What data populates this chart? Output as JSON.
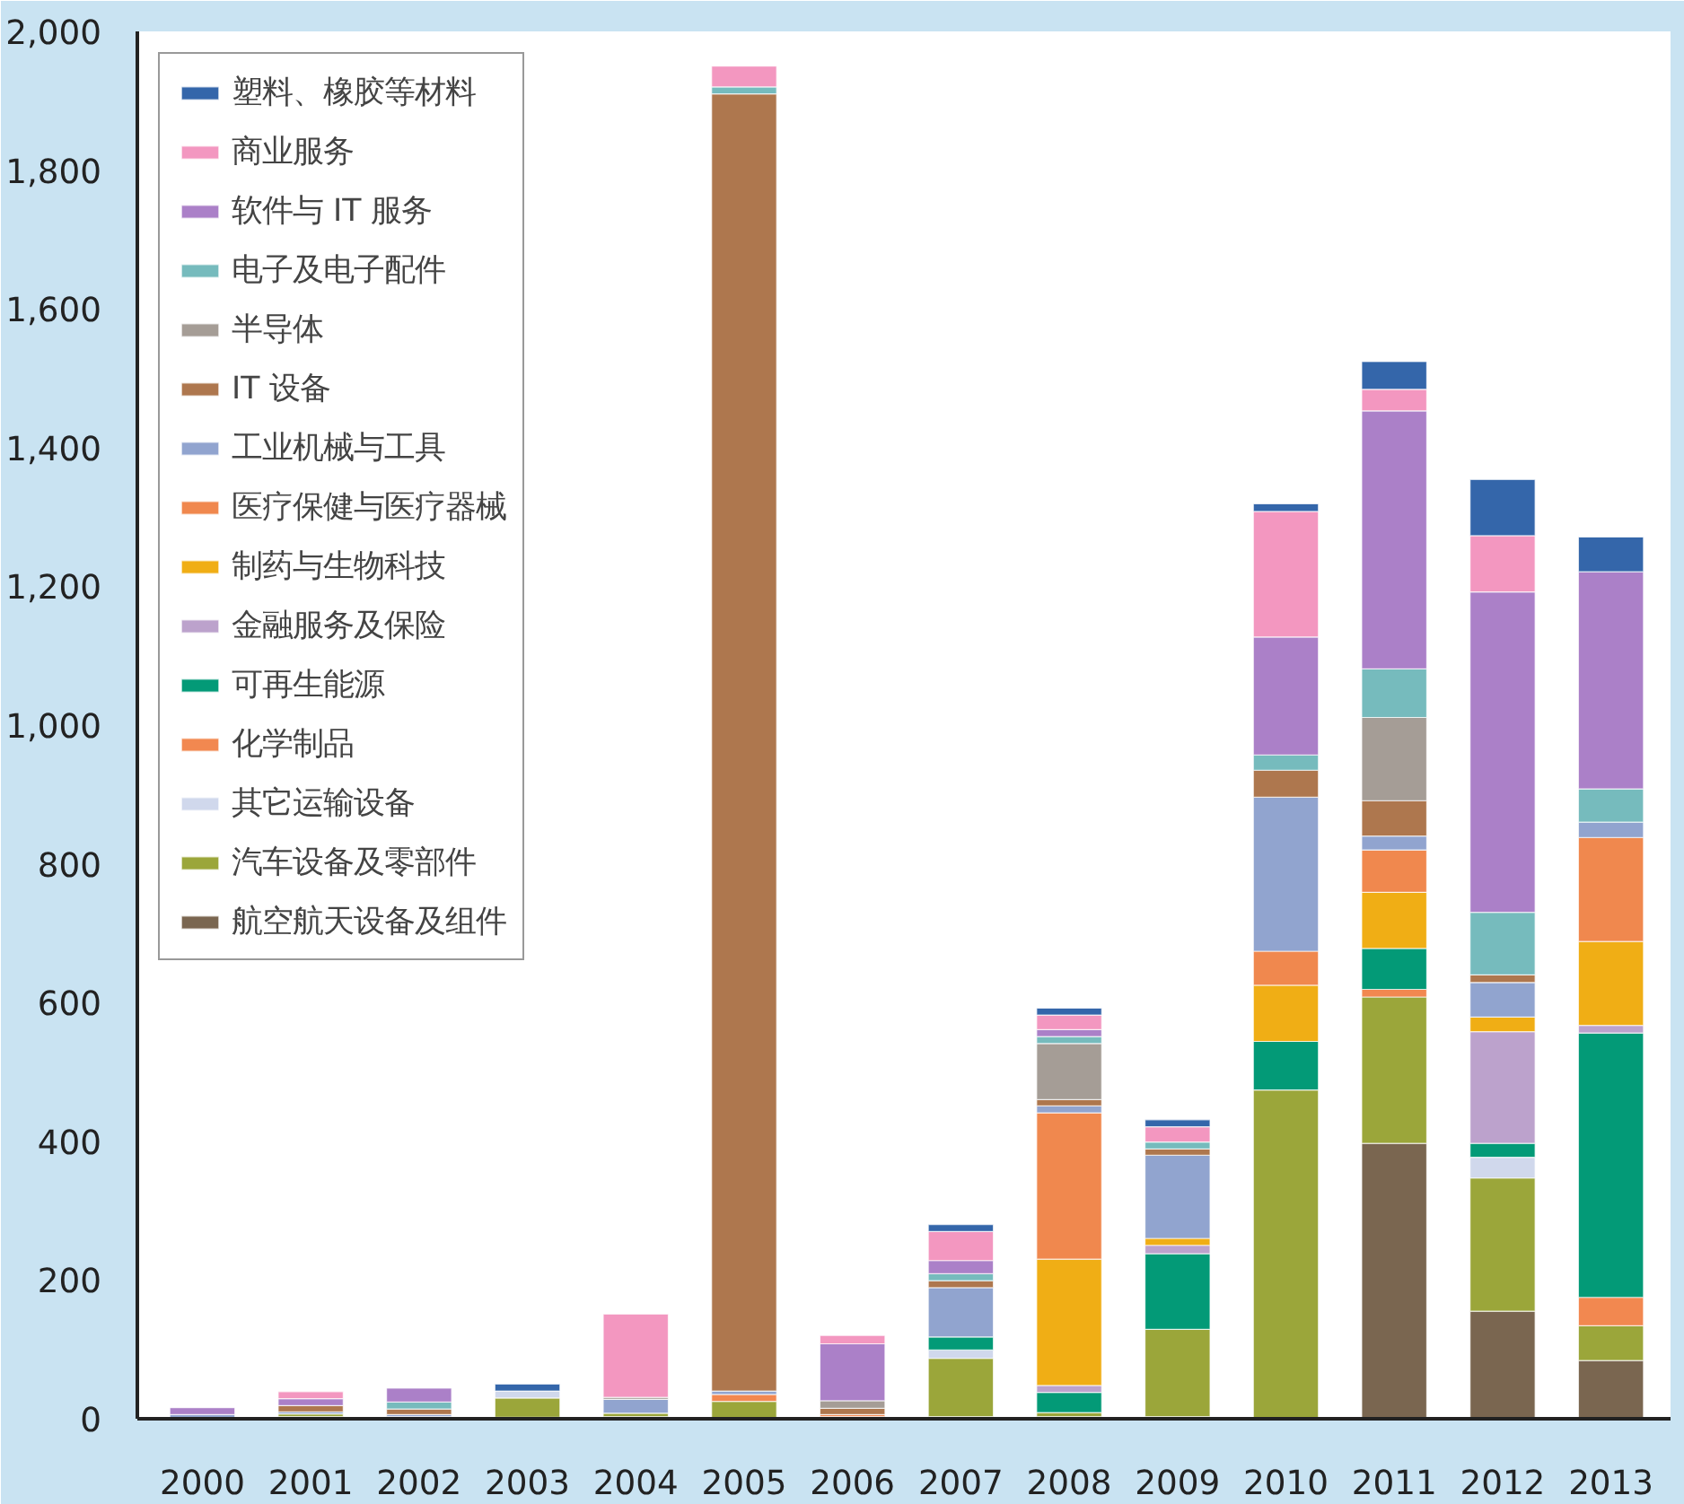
{
  "chart_data": {
    "type": "bar",
    "stacked": true,
    "categories": [
      "2000",
      "2001",
      "2002",
      "2003",
      "2004",
      "2005",
      "2006",
      "2007",
      "2008",
      "2009",
      "2010",
      "2011",
      "2012",
      "2013"
    ],
    "ylim": [
      0,
      2000
    ],
    "yticks": [
      0,
      200,
      400,
      600,
      800,
      {
        "value": 1000,
        "label": "1,000"
      },
      {
        "value": 1200,
        "label": "1,200"
      },
      {
        "value": 1400,
        "label": "1,400"
      },
      {
        "value": 1600,
        "label": "1,600"
      },
      {
        "value": 1800,
        "label": "1,800"
      },
      {
        "value": 2000,
        "label": "2,000"
      }
    ],
    "grid": false,
    "legend": "top left",
    "series": [
      {
        "name": "航空航天设备及组件",
        "color": "#7a6650",
        "values": [
          null,
          3,
          null,
          2,
          3,
          null,
          3,
          3,
          3,
          3,
          null,
          397,
          155,
          84
        ]
      },
      {
        "name": "汽车设备及零部件",
        "color": "#9ba63a",
        "values": [
          null,
          4,
          3,
          28,
          5,
          25,
          null,
          84,
          6,
          126,
          474,
          211,
          192,
          50
        ]
      },
      {
        "name": "其它运输设备",
        "color": "#d0d8ec",
        "values": [
          null,
          null,
          null,
          10,
          null,
          null,
          null,
          12,
          null,
          null,
          null,
          null,
          30,
          null
        ]
      },
      {
        "name": "化学制品",
        "color": "#f28850",
        "values": [
          null,
          null,
          null,
          null,
          null,
          10,
          3,
          null,
          null,
          null,
          null,
          11,
          null,
          41
        ]
      },
      {
        "name": "可再生能源",
        "color": "#039a77",
        "values": [
          null,
          null,
          null,
          null,
          null,
          null,
          null,
          19,
          29,
          109,
          70,
          59,
          20,
          381
        ]
      },
      {
        "name": "金融服务及保险",
        "color": "#bca2cc",
        "values": [
          null,
          null,
          null,
          null,
          null,
          null,
          null,
          null,
          10,
          12,
          null,
          null,
          161,
          11
        ]
      },
      {
        "name": "制药与生物科技",
        "color": "#f0ae15",
        "values": [
          null,
          null,
          null,
          null,
          null,
          null,
          null,
          null,
          182,
          10,
          81,
          81,
          21,
          121
        ]
      },
      {
        "name": "医疗保健与医疗器械",
        "color": "#f0884e",
        "values": [
          null,
          null,
          null,
          null,
          null,
          null,
          null,
          null,
          211,
          null,
          49,
          61,
          null,
          150
        ]
      },
      {
        "name": "工业机械与工具",
        "color": "#91a4cf",
        "values": [
          6,
          3,
          3,
          null,
          20,
          5,
          null,
          71,
          10,
          120,
          222,
          20,
          50,
          22
        ]
      },
      {
        "name": "IT 设备",
        "color": "#ae774e",
        "values": [
          null,
          9,
          8,
          null,
          null,
          1870,
          9,
          10,
          9,
          9,
          39,
          51,
          11,
          null
        ]
      },
      {
        "name": "半导体",
        "color": "#a59d96",
        "values": [
          null,
          null,
          null,
          null,
          3,
          null,
          11,
          null,
          81,
          null,
          null,
          120,
          null,
          null
        ]
      },
      {
        "name": "电子及电子配件",
        "color": "#76bbbd",
        "values": [
          null,
          null,
          10,
          null,
          null,
          10,
          null,
          10,
          10,
          10,
          22,
          70,
          90,
          48
        ]
      },
      {
        "name": "软件与 IT 服务",
        "color": "#ab80c8",
        "values": [
          10,
          10,
          20,
          null,
          null,
          null,
          82,
          19,
          10,
          null,
          170,
          372,
          462,
          313
        ]
      },
      {
        "name": "商业服务",
        "color": "#f397c0",
        "values": [
          null,
          10,
          null,
          null,
          120,
          30,
          12,
          42,
          21,
          22,
          181,
          31,
          81,
          null
        ]
      },
      {
        "name": "塑料、橡胶等材料",
        "color": "#3466aa",
        "values": [
          null,
          null,
          null,
          10,
          null,
          null,
          null,
          10,
          10,
          10,
          11,
          40,
          81,
          50
        ]
      }
    ]
  }
}
